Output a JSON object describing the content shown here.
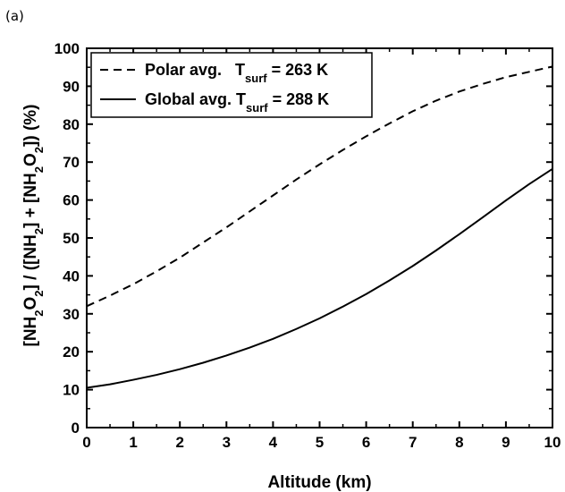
{
  "panel_label": "(a)",
  "chart_data": {
    "type": "line",
    "xlabel": "Altitude (km)",
    "ylabel_parts": [
      "[NH",
      "2",
      "O",
      "2",
      "] / ([NH",
      "2",
      "] + [NH",
      "2",
      "O",
      "2",
      "]) (%)"
    ],
    "xlim": [
      0,
      10
    ],
    "ylim": [
      0,
      100
    ],
    "x_ticks": [
      0,
      1,
      2,
      3,
      4,
      5,
      6,
      7,
      8,
      9,
      10
    ],
    "y_ticks": [
      0,
      10,
      20,
      30,
      40,
      50,
      60,
      70,
      80,
      90,
      100
    ],
    "grid": false,
    "legend_position": "top-left",
    "series": [
      {
        "label_main": "Polar avg.   T",
        "label_sub": "surf",
        "label_tail": " = 263 K",
        "style": "dashed",
        "color": "#000000",
        "x": [
          0,
          0.5,
          1,
          1.5,
          2,
          2.5,
          3,
          3.5,
          4,
          4.5,
          5,
          5.5,
          6,
          6.5,
          7,
          7.5,
          8,
          8.5,
          9,
          9.5,
          10
        ],
        "y": [
          32,
          34.8,
          37.8,
          41.2,
          44.8,
          48.8,
          52.8,
          57,
          61.2,
          65.4,
          69.4,
          73.2,
          76.8,
          80.2,
          83.4,
          86.2,
          88.6,
          90.6,
          92.4,
          93.8,
          95.2
        ]
      },
      {
        "label_main": "Global avg. T",
        "label_sub": "surf",
        "label_tail": " = 288 K",
        "style": "solid",
        "color": "#000000",
        "x": [
          0,
          0.5,
          1,
          1.5,
          2,
          2.5,
          3,
          3.5,
          4,
          4.5,
          5,
          5.5,
          6,
          6.5,
          7,
          7.5,
          8,
          8.5,
          9,
          9.5,
          10
        ],
        "y": [
          10.5,
          11.4,
          12.6,
          13.9,
          15.4,
          17.1,
          19,
          21.1,
          23.4,
          26,
          28.8,
          31.9,
          35.2,
          38.8,
          42.6,
          46.7,
          51,
          55.4,
          59.9,
          64.2,
          68.2
        ]
      }
    ]
  }
}
